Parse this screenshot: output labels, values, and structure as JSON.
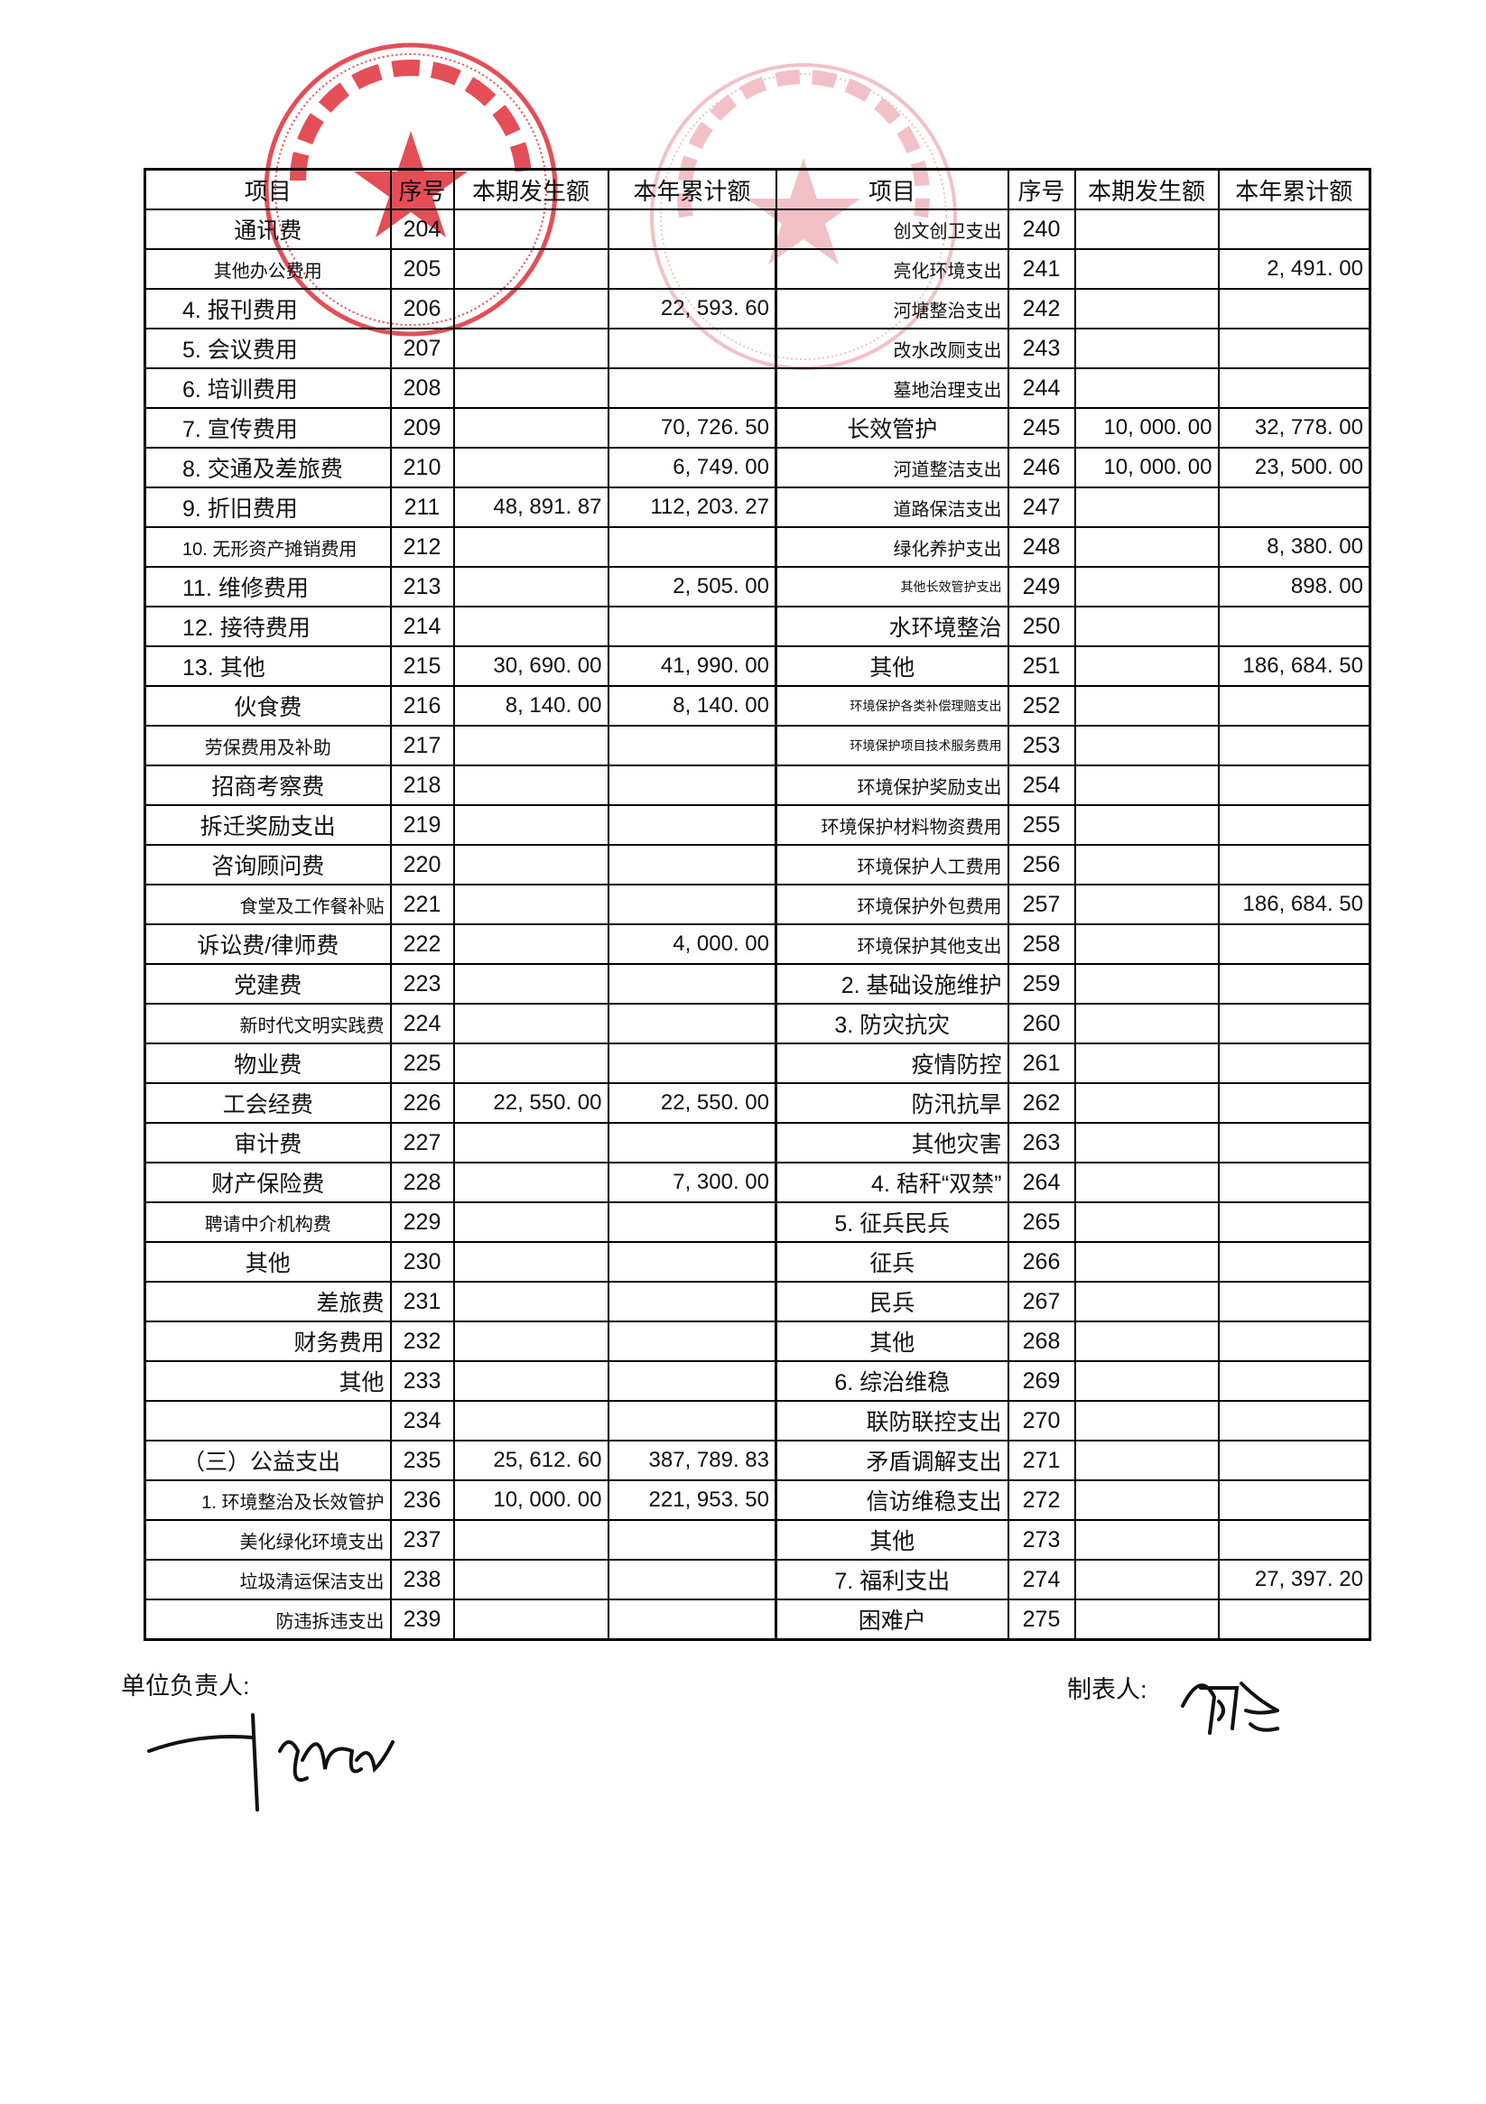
{
  "header": {
    "item": "项目",
    "seq": "序号",
    "period": "本期发生额",
    "annual": "本年累计额"
  },
  "left_rows": [
    {
      "item": "通讯费",
      "seq": "204",
      "period": "",
      "annual": ""
    },
    {
      "item": "其他办公费用",
      "seq": "205",
      "period": "",
      "annual": ""
    },
    {
      "item": "4. 报刊费用",
      "seq": "206",
      "period": "",
      "annual": "22, 593. 60"
    },
    {
      "item": "5. 会议费用",
      "seq": "207",
      "period": "",
      "annual": ""
    },
    {
      "item": "6. 培训费用",
      "seq": "208",
      "period": "",
      "annual": ""
    },
    {
      "item": "7. 宣传费用",
      "seq": "209",
      "period": "",
      "annual": "70, 726. 50"
    },
    {
      "item": "8. 交通及差旅费",
      "seq": "210",
      "period": "",
      "annual": "6, 749. 00"
    },
    {
      "item": "9. 折旧费用",
      "seq": "211",
      "period": "48, 891. 87",
      "annual": "112, 203. 27"
    },
    {
      "item": "10. 无形资产摊销费用",
      "seq": "212",
      "period": "",
      "annual": ""
    },
    {
      "item": "11. 维修费用",
      "seq": "213",
      "period": "",
      "annual": "2, 505. 00"
    },
    {
      "item": "12. 接待费用",
      "seq": "214",
      "period": "",
      "annual": ""
    },
    {
      "item": "13. 其他",
      "seq": "215",
      "period": "30, 690. 00",
      "annual": "41, 990. 00"
    },
    {
      "item": "伙食费",
      "seq": "216",
      "period": "8, 140. 00",
      "annual": "8, 140. 00"
    },
    {
      "item": "劳保费用及补助",
      "seq": "217",
      "period": "",
      "annual": ""
    },
    {
      "item": "招商考察费",
      "seq": "218",
      "period": "",
      "annual": ""
    },
    {
      "item": "拆迁奖励支出",
      "seq": "219",
      "period": "",
      "annual": ""
    },
    {
      "item": "咨询顾问费",
      "seq": "220",
      "period": "",
      "annual": ""
    },
    {
      "item": "食堂及工作餐补贴",
      "seq": "221",
      "period": "",
      "annual": ""
    },
    {
      "item": "诉讼费/律师费",
      "seq": "222",
      "period": "",
      "annual": "4, 000. 00"
    },
    {
      "item": "党建费",
      "seq": "223",
      "period": "",
      "annual": ""
    },
    {
      "item": "新时代文明实践费",
      "seq": "224",
      "period": "",
      "annual": ""
    },
    {
      "item": "物业费",
      "seq": "225",
      "period": "",
      "annual": ""
    },
    {
      "item": "工会经费",
      "seq": "226",
      "period": "22, 550. 00",
      "annual": "22, 550. 00"
    },
    {
      "item": "审计费",
      "seq": "227",
      "period": "",
      "annual": ""
    },
    {
      "item": "财产保险费",
      "seq": "228",
      "period": "",
      "annual": "7, 300. 00"
    },
    {
      "item": "聘请中介机构费",
      "seq": "229",
      "period": "",
      "annual": ""
    },
    {
      "item": "其他",
      "seq": "230",
      "period": "",
      "annual": ""
    },
    {
      "item": "差旅费",
      "seq": "231",
      "period": "",
      "annual": ""
    },
    {
      "item": "财务费用",
      "seq": "232",
      "period": "",
      "annual": ""
    },
    {
      "item": "其他",
      "seq": "233",
      "period": "",
      "annual": ""
    },
    {
      "item": "",
      "seq": "234",
      "period": "",
      "annual": ""
    },
    {
      "item": "（三）公益支出",
      "seq": "235",
      "period": "25, 612. 60",
      "annual": "387, 789. 83"
    },
    {
      "item": "1. 环境整治及长效管护",
      "seq": "236",
      "period": "10, 000. 00",
      "annual": "221, 953. 50"
    },
    {
      "item": "美化绿化环境支出",
      "seq": "237",
      "period": "",
      "annual": ""
    },
    {
      "item": "垃圾清运保洁支出",
      "seq": "238",
      "period": "",
      "annual": ""
    },
    {
      "item": "防违拆违支出",
      "seq": "239",
      "period": "",
      "annual": ""
    }
  ],
  "right_rows": [
    {
      "item": "创文创卫支出",
      "seq": "240",
      "period": "",
      "annual": ""
    },
    {
      "item": "亮化环境支出",
      "seq": "241",
      "period": "",
      "annual": "2, 491. 00"
    },
    {
      "item": "河塘整治支出",
      "seq": "242",
      "period": "",
      "annual": ""
    },
    {
      "item": "改水改厕支出",
      "seq": "243",
      "period": "",
      "annual": ""
    },
    {
      "item": "墓地治理支出",
      "seq": "244",
      "period": "",
      "annual": ""
    },
    {
      "item": "长效管护",
      "seq": "245",
      "period": "10, 000. 00",
      "annual": "32, 778. 00"
    },
    {
      "item": "河道整洁支出",
      "seq": "246",
      "period": "10, 000. 00",
      "annual": "23, 500. 00"
    },
    {
      "item": "道路保洁支出",
      "seq": "247",
      "period": "",
      "annual": ""
    },
    {
      "item": "绿化养护支出",
      "seq": "248",
      "period": "",
      "annual": "8, 380. 00"
    },
    {
      "item": "其他长效管护支出",
      "seq": "249",
      "period": "",
      "annual": "898. 00"
    },
    {
      "item": "水环境整治",
      "seq": "250",
      "period": "",
      "annual": ""
    },
    {
      "item": "其他",
      "seq": "251",
      "period": "",
      "annual": "186, 684. 50"
    },
    {
      "item": "环境保护各类补偿理赔支出",
      "seq": "252",
      "period": "",
      "annual": ""
    },
    {
      "item": "环境保护项目技术服务费用",
      "seq": "253",
      "period": "",
      "annual": ""
    },
    {
      "item": "环境保护奖励支出",
      "seq": "254",
      "period": "",
      "annual": ""
    },
    {
      "item": "环境保护材料物资费用",
      "seq": "255",
      "period": "",
      "annual": ""
    },
    {
      "item": "环境保护人工费用",
      "seq": "256",
      "period": "",
      "annual": ""
    },
    {
      "item": "环境保护外包费用",
      "seq": "257",
      "period": "",
      "annual": "186, 684. 50"
    },
    {
      "item": "环境保护其他支出",
      "seq": "258",
      "period": "",
      "annual": ""
    },
    {
      "item": "2. 基础设施维护",
      "seq": "259",
      "period": "",
      "annual": ""
    },
    {
      "item": "3. 防灾抗灾",
      "seq": "260",
      "period": "",
      "annual": ""
    },
    {
      "item": "疫情防控",
      "seq": "261",
      "period": "",
      "annual": ""
    },
    {
      "item": "防汛抗旱",
      "seq": "262",
      "period": "",
      "annual": ""
    },
    {
      "item": "其他灾害",
      "seq": "263",
      "period": "",
      "annual": ""
    },
    {
      "item": "4. 秸秆“双禁”",
      "seq": "264",
      "period": "",
      "annual": ""
    },
    {
      "item": "5. 征兵民兵",
      "seq": "265",
      "period": "",
      "annual": ""
    },
    {
      "item": "征兵",
      "seq": "266",
      "period": "",
      "annual": ""
    },
    {
      "item": "民兵",
      "seq": "267",
      "period": "",
      "annual": ""
    },
    {
      "item": "其他",
      "seq": "268",
      "period": "",
      "annual": ""
    },
    {
      "item": "6. 综治维稳",
      "seq": "269",
      "period": "",
      "annual": ""
    },
    {
      "item": "联防联控支出",
      "seq": "270",
      "period": "",
      "annual": ""
    },
    {
      "item": "矛盾调解支出",
      "seq": "271",
      "period": "",
      "annual": ""
    },
    {
      "item": "信访维稳支出",
      "seq": "272",
      "period": "",
      "annual": ""
    },
    {
      "item": "其他",
      "seq": "273",
      "period": "",
      "annual": ""
    },
    {
      "item": "7. 福利支出",
      "seq": "274",
      "period": "",
      "annual": "27, 397. 20"
    },
    {
      "item": "困难户",
      "seq": "275",
      "period": "",
      "annual": ""
    }
  ],
  "footer": {
    "unit_head_label": "单位负责人:",
    "preparer_label": "制表人:"
  },
  "stamps": [
    {
      "text": "昆山市张浦镇金华村民委员会",
      "code": "3205830759331",
      "color": "#e0303a"
    },
    {
      "text": "昆山市张浦镇金华村股份经济合作社",
      "code": "3205833069658",
      "color": "#e8909a"
    }
  ]
}
